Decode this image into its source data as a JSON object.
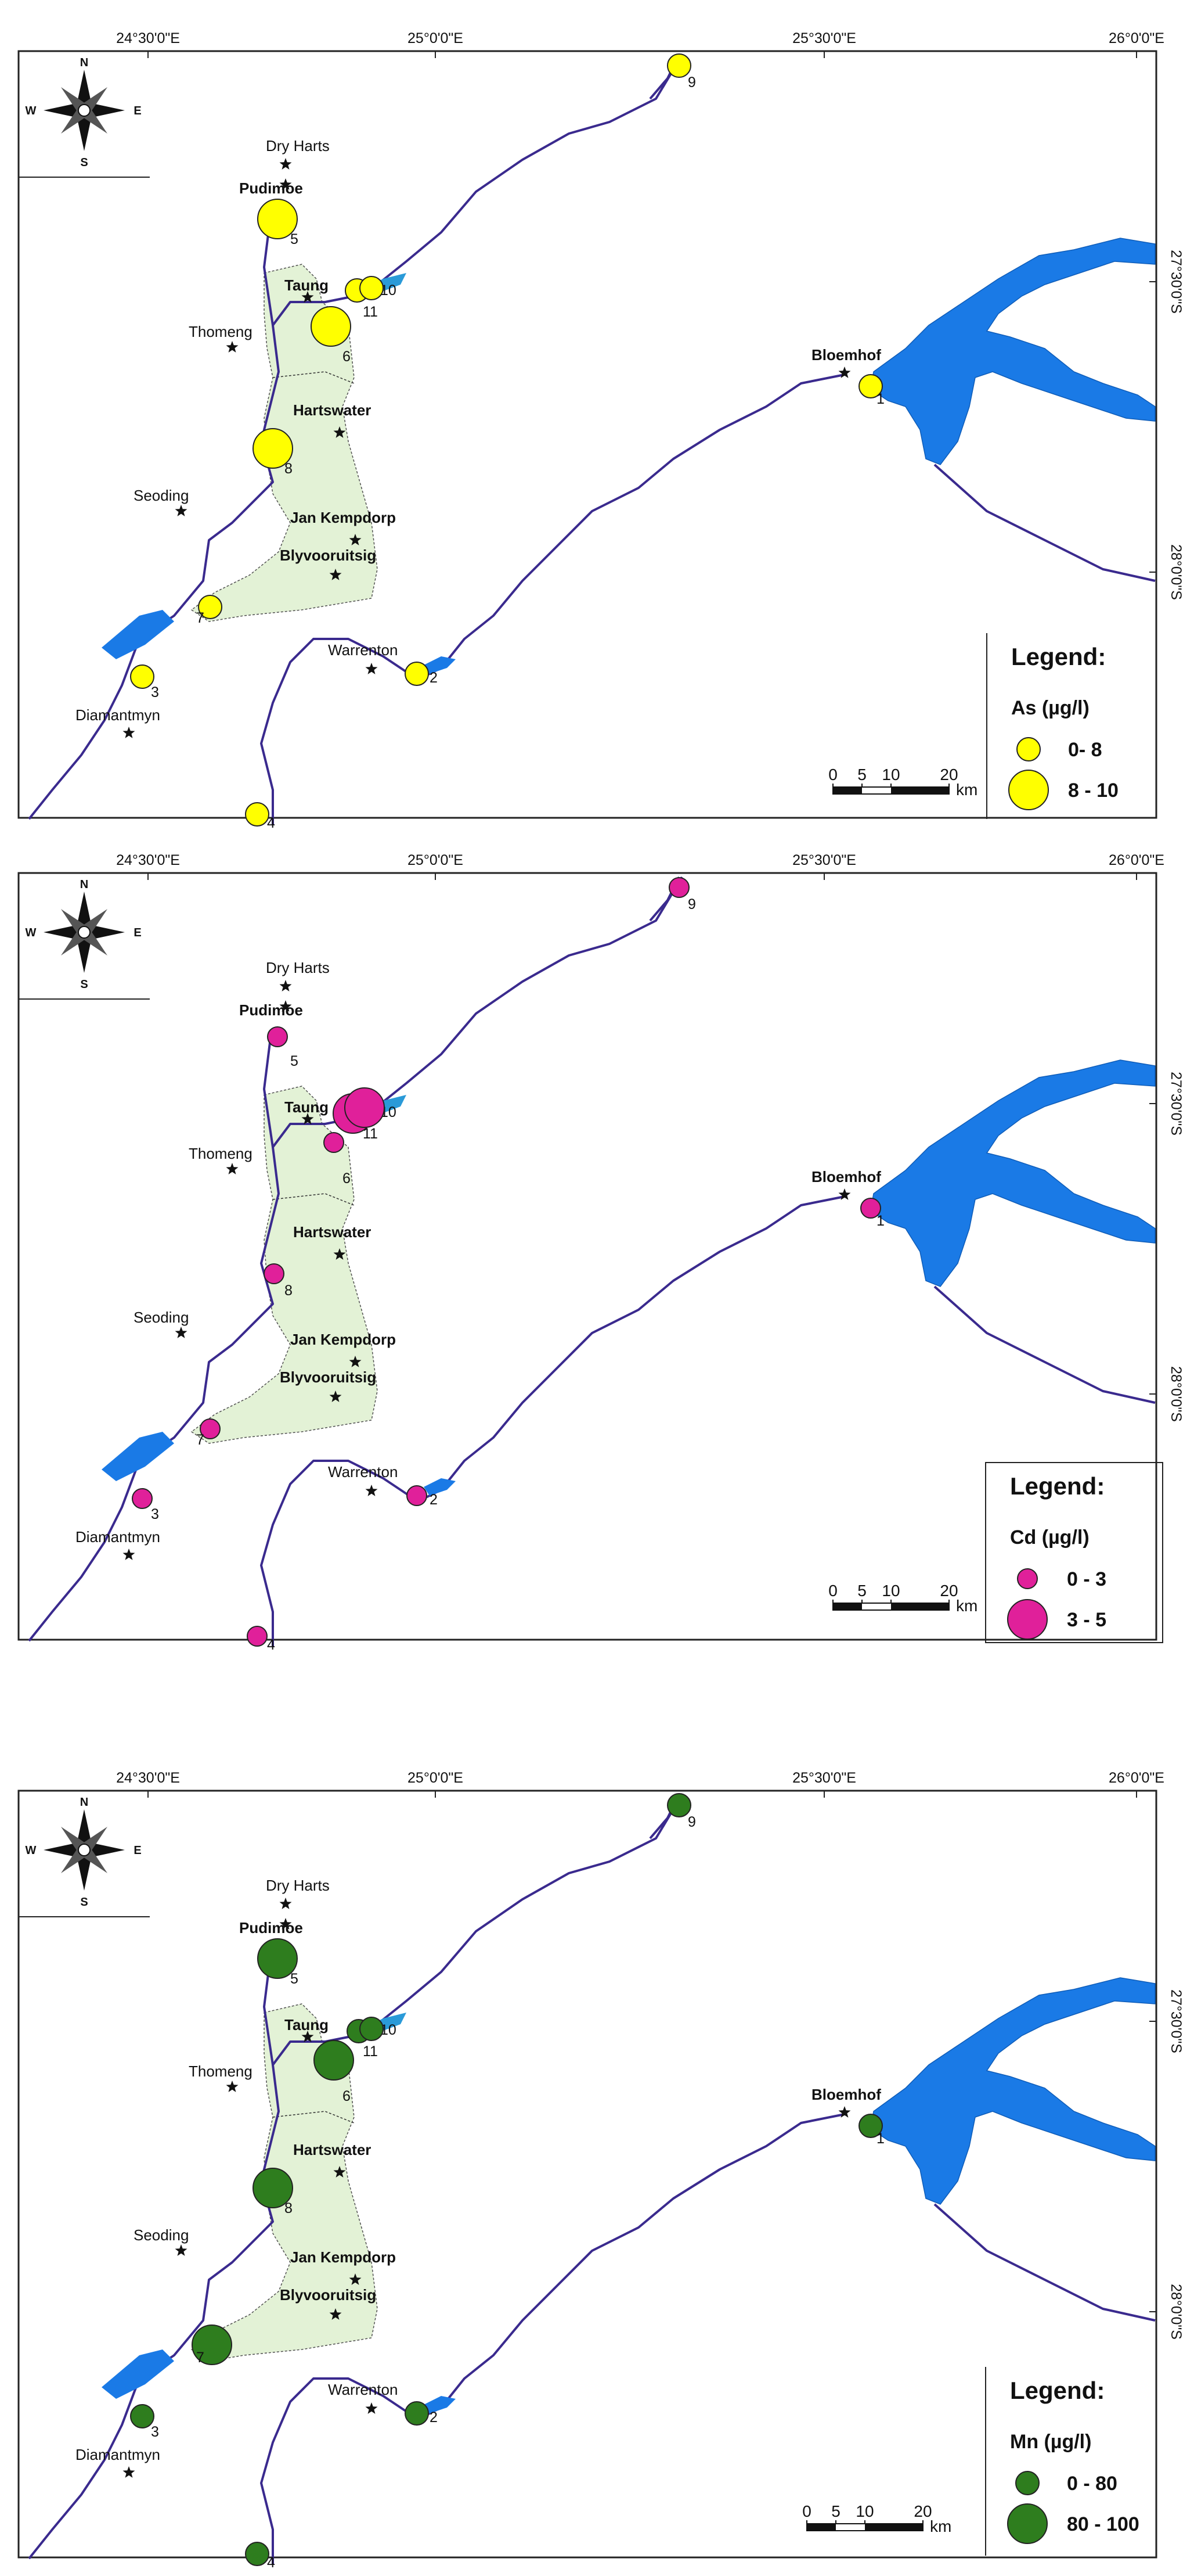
{
  "map_ticks": {
    "lon": [
      "24°30'0\"E",
      "25°0'0\"E",
      "25°30'0\"E",
      "26°0'0\"E"
    ],
    "lat": [
      "27°30'0\"S",
      "28°0'0\"S"
    ]
  },
  "compass": {
    "n": "N",
    "s": "S",
    "e": "E",
    "w": "W"
  },
  "towns": [
    "Dry Harts",
    "Pudimoe",
    "Taung",
    "Thomeng",
    "Hartswater",
    "Seoding",
    "Jan Kempdorp",
    "Blyvooruitsig",
    "Warrenton",
    "Diamantmyn",
    "Bloemhof"
  ],
  "sites": [
    "1",
    "2",
    "3",
    "4",
    "5",
    "6",
    "7",
    "8",
    "9",
    "10",
    "11"
  ],
  "scale_bar": {
    "labels": [
      "0",
      "5",
      "10",
      "20"
    ],
    "unit": "km"
  },
  "legend_title": "Legend:",
  "panels": [
    {
      "parameter": "As (µg/l)",
      "color": "#ffff00",
      "classes": [
        "0- 8",
        "8 - 10"
      ],
      "site_class": {
        "1": 0,
        "2": 0,
        "3": 0,
        "4": 0,
        "5": 1,
        "6": 1,
        "7": 0,
        "8": 1,
        "9": 0,
        "10": 0,
        "11": 0
      }
    },
    {
      "parameter": "Cd (µg/l)",
      "color": "#e0209a",
      "classes": [
        "0 - 3",
        "3 - 5"
      ],
      "site_class": {
        "1": 0,
        "2": 0,
        "3": 0,
        "4": 0,
        "5": 0,
        "6": 0,
        "7": 0,
        "8": 0,
        "9": 0,
        "10": 1,
        "11": 1
      }
    },
    {
      "parameter": "Mn (µg/l)",
      "color": "#2e7d1e",
      "classes": [
        "0 - 80",
        "80 - 100"
      ],
      "site_class": {
        "1": 0,
        "2": 0,
        "3": 0,
        "4": 0,
        "5": 1,
        "6": 1,
        "7": 1,
        "8": 1,
        "9": 0,
        "10": 0,
        "11": 0
      }
    }
  ]
}
